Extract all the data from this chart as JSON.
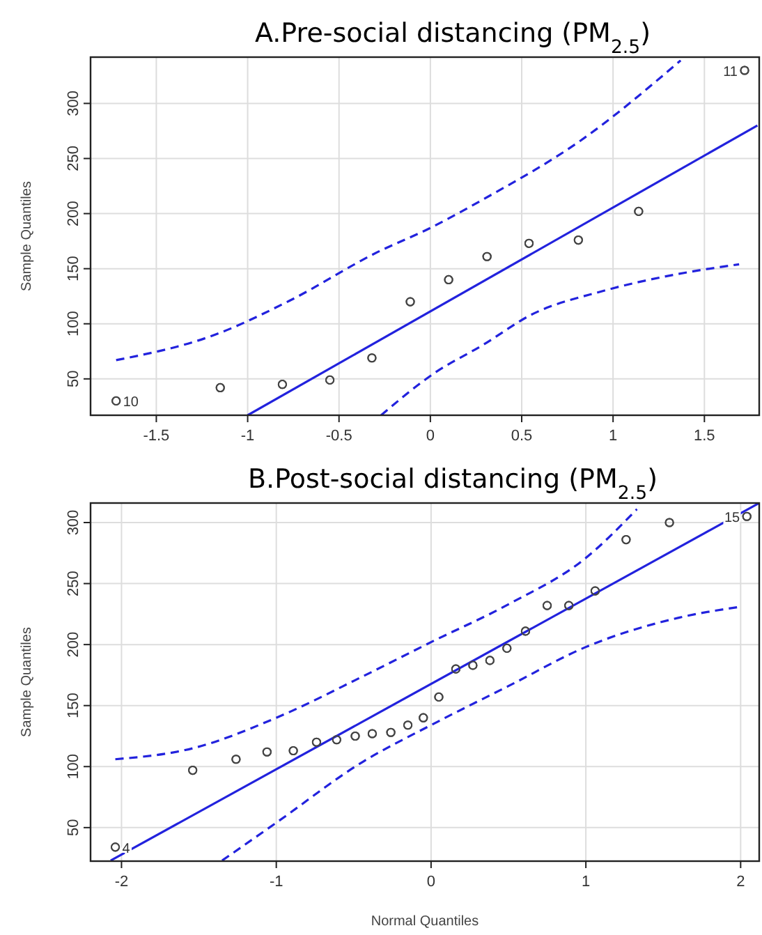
{
  "chart_data": [
    {
      "type": "scatter",
      "title": "A.Pre-social distancing (PM$_{2.5}$)",
      "ylabel": "Sample Quantiles",
      "xlim": [
        -1.86,
        1.8
      ],
      "ylim": [
        17,
        342
      ],
      "xticks": [
        -1.5,
        -1.0,
        -0.5,
        0.0,
        0.5,
        1.0,
        1.5
      ],
      "yticks": [
        50,
        100,
        150,
        200,
        250,
        300
      ],
      "grid": true,
      "series": [
        {
          "marker": "circle",
          "color": "#444444",
          "x": [
            -1.72,
            -1.15,
            -0.81,
            -0.55,
            -0.32,
            -0.11,
            0.1,
            0.31,
            0.54,
            0.81,
            1.14,
            1.72
          ],
          "values": [
            30,
            42,
            45,
            49,
            69,
            120,
            140,
            161,
            173,
            176,
            202,
            330
          ]
        },
        {
          "type": "line",
          "color": "#2222dd",
          "line_style": "solid",
          "x": [
            -1.0,
            1.79
          ],
          "values": [
            17,
            280
          ]
        },
        {
          "type": "line",
          "color": "#2222dd",
          "line_style": "dashed",
          "x": [
            -1.72,
            -1.18,
            -0.77,
            -0.29,
            0,
            0.29,
            0.82,
            1.37
          ],
          "values": [
            67,
            90,
            121,
            165,
            187,
            213,
            266,
            339
          ]
        },
        {
          "type": "line",
          "color": "#2222dd",
          "line_style": "dashed",
          "x": [
            -0.27,
            0.02,
            0.29,
            0.55,
            0.95,
            1.35,
            1.69
          ],
          "values": [
            17,
            55,
            81,
            108,
            130,
            145,
            154
          ]
        }
      ],
      "annotations": [
        {
          "text": "10",
          "x": -1.72,
          "y": 30
        },
        {
          "text": "11",
          "x": 1.72,
          "y": 330
        }
      ]
    },
    {
      "type": "scatter",
      "title": "B.Post-social distancing (PM$_{2.5}$)",
      "xlabel": "Normal Quantiles",
      "ylabel": "Sample Quantiles",
      "xlim": [
        -2.2,
        2.12
      ],
      "ylim": [
        22.5,
        316
      ],
      "xticks": [
        -2,
        -1,
        0,
        1,
        2
      ],
      "yticks": [
        50,
        100,
        150,
        200,
        250,
        300
      ],
      "grid": true,
      "series": [
        {
          "marker": "circle",
          "color": "#444444",
          "x": [
            -2.04,
            -1.54,
            -1.26,
            -1.06,
            -0.89,
            -0.74,
            -0.61,
            -0.49,
            -0.38,
            -0.26,
            -0.15,
            -0.05,
            0.05,
            0.16,
            0.27,
            0.38,
            0.49,
            0.61,
            0.75,
            0.89,
            1.06,
            1.26,
            1.54,
            2.04
          ],
          "values": [
            34,
            97,
            106,
            112,
            113,
            120,
            122,
            125,
            127,
            128,
            134,
            140,
            157,
            180,
            183,
            187,
            197,
            211,
            232,
            232,
            244,
            286,
            300,
            305
          ]
        },
        {
          "type": "line",
          "color": "#2222dd",
          "line_style": "solid",
          "x": [
            -2.07,
            2.12
          ],
          "values": [
            23,
            316
          ]
        },
        {
          "type": "line",
          "color": "#2222dd",
          "line_style": "dashed",
          "x": [
            -2.04,
            -1.54,
            -1.0,
            -0.44,
            0,
            0.5,
            1.0,
            1.33
          ],
          "values": [
            106,
            115,
            140,
            174,
            202,
            233,
            271,
            311
          ]
        },
        {
          "type": "line",
          "color": "#2222dd",
          "line_style": "dashed",
          "x": [
            -1.35,
            -1.0,
            -0.44,
            0,
            0.5,
            1.0,
            1.6,
            2.0
          ],
          "values": [
            23,
            54,
            104,
            134,
            166,
            198,
            222,
            231
          ]
        }
      ],
      "annotations": [
        {
          "text": "4",
          "x": -2.04,
          "y": 34
        },
        {
          "text": "15",
          "x": 2.04,
          "y": 305
        }
      ]
    }
  ]
}
